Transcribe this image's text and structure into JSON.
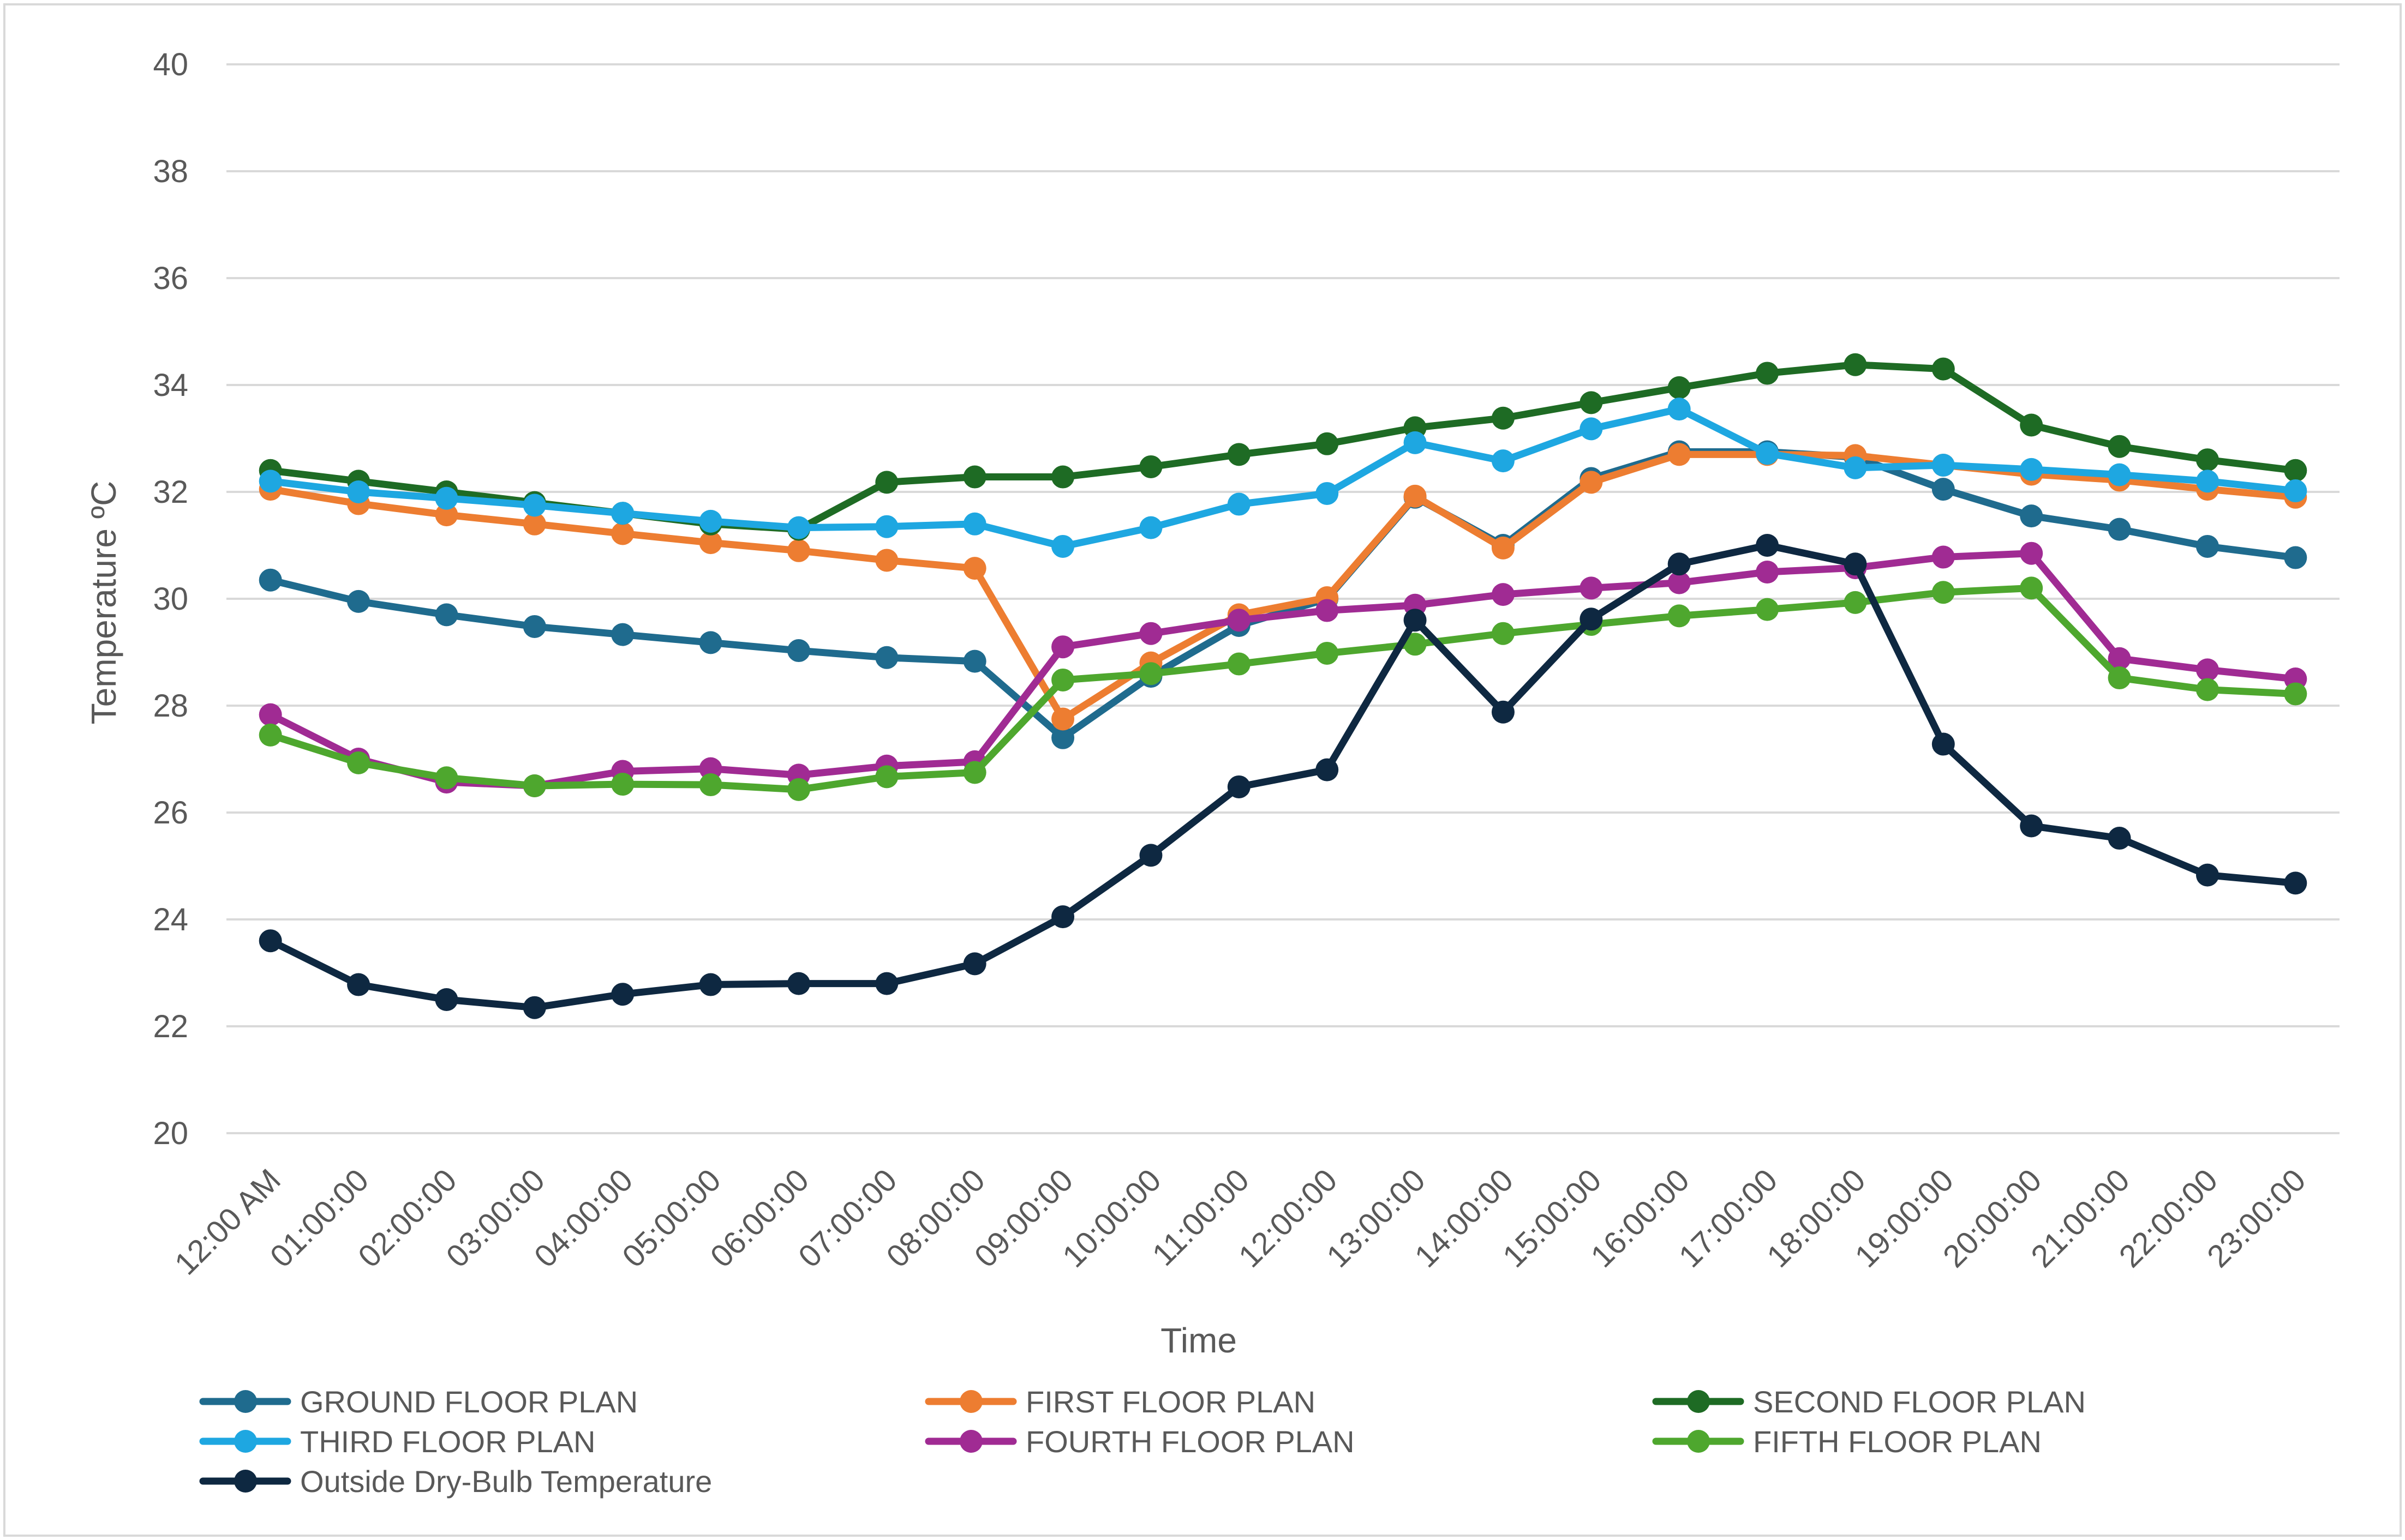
{
  "chart_data": {
    "type": "line",
    "title": "",
    "xlabel": "Time",
    "ylabel": "Temperature ºC",
    "ylim": [
      20,
      40
    ],
    "yticks": [
      20,
      22,
      24,
      26,
      28,
      30,
      32,
      34,
      36,
      38,
      40
    ],
    "grid": true,
    "legend_position": "bottom",
    "categories": [
      "12:00 AM",
      "01:00:00",
      "02:00:00",
      "03:00:00",
      "04:00:00",
      "05:00:00",
      "06:00:00",
      "07:00:00",
      "08:00:00",
      "09:00:00",
      "10:00:00",
      "11:00:00",
      "12:00:00",
      "13:00:00",
      "14:00:00",
      "15:00:00",
      "16:00:00",
      "17:00:00",
      "18:00:00",
      "19:00:00",
      "20:00:00",
      "21:00:00",
      "22:00:00",
      "23:00:00"
    ],
    "series": [
      {
        "name": "GROUND FLOOR PLAN",
        "color": "#1F6B8E",
        "values": [
          30.35,
          29.95,
          29.7,
          29.48,
          29.33,
          29.18,
          29.03,
          28.9,
          28.83,
          27.4,
          28.55,
          29.5,
          30.0,
          31.9,
          31.0,
          32.25,
          32.75,
          32.75,
          32.65,
          32.05,
          31.55,
          31.3,
          30.98,
          30.77
        ]
      },
      {
        "name": "FIRST FLOOR PLAN",
        "color": "#ED7D31",
        "values": [
          32.05,
          31.78,
          31.57,
          31.4,
          31.22,
          31.05,
          30.9,
          30.72,
          30.57,
          27.75,
          28.8,
          29.7,
          30.02,
          31.92,
          30.95,
          32.18,
          32.7,
          32.7,
          32.68,
          32.5,
          32.33,
          32.22,
          32.05,
          31.9
        ]
      },
      {
        "name": "SECOND FLOOR PLAN",
        "color": "#1E6B24",
        "values": [
          32.4,
          32.2,
          32.0,
          31.8,
          31.6,
          31.4,
          31.3,
          32.18,
          32.28,
          32.28,
          32.47,
          32.7,
          32.9,
          33.2,
          33.38,
          33.67,
          33.95,
          34.22,
          34.38,
          34.3,
          33.25,
          32.85,
          32.6,
          32.4
        ]
      },
      {
        "name": "THIRD FLOOR PLAN",
        "color": "#1EA7E1",
        "values": [
          32.2,
          32.0,
          31.88,
          31.75,
          31.6,
          31.45,
          31.33,
          31.35,
          31.4,
          30.98,
          31.33,
          31.77,
          31.97,
          32.92,
          32.58,
          33.18,
          33.55,
          32.72,
          32.45,
          32.5,
          32.42,
          32.32,
          32.2,
          32.02
        ]
      },
      {
        "name": "FOURTH FLOOR PLAN",
        "color": "#A02B93",
        "values": [
          27.83,
          27.0,
          26.57,
          26.5,
          26.77,
          26.82,
          26.7,
          26.87,
          26.95,
          29.1,
          29.35,
          29.6,
          29.78,
          29.88,
          30.08,
          30.2,
          30.3,
          30.5,
          30.58,
          30.78,
          30.85,
          28.88,
          28.67,
          28.5
        ]
      },
      {
        "name": "FIFTH FLOOR PLAN",
        "color": "#4EA72E",
        "values": [
          27.45,
          26.93,
          26.65,
          26.5,
          26.53,
          26.52,
          26.43,
          26.67,
          26.75,
          28.48,
          28.6,
          28.78,
          28.98,
          29.15,
          29.35,
          29.52,
          29.68,
          29.8,
          29.93,
          30.12,
          30.2,
          28.52,
          28.3,
          28.22
        ]
      },
      {
        "name": "Outside Dry-Bulb Temperature",
        "color": "#0E2841",
        "values": [
          23.6,
          22.78,
          22.5,
          22.35,
          22.6,
          22.78,
          22.8,
          22.8,
          23.17,
          24.05,
          25.2,
          26.48,
          26.8,
          29.6,
          27.88,
          29.62,
          30.65,
          31.0,
          30.65,
          27.28,
          25.75,
          25.52,
          24.83,
          24.68
        ]
      }
    ]
  }
}
